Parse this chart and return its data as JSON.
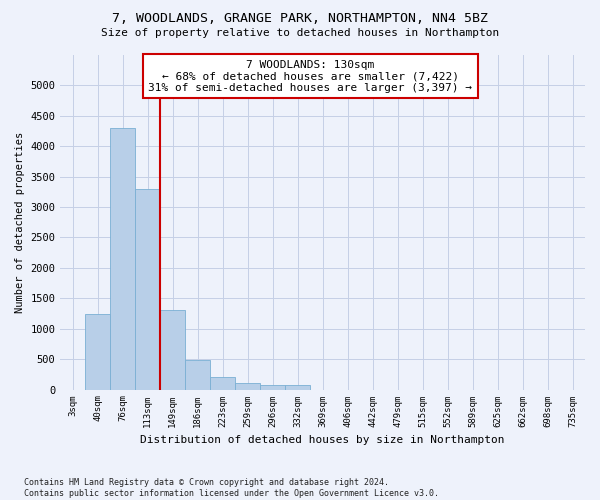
{
  "title1": "7, WOODLANDS, GRANGE PARK, NORTHAMPTON, NN4 5BZ",
  "title2": "Size of property relative to detached houses in Northampton",
  "xlabel": "Distribution of detached houses by size in Northampton",
  "ylabel": "Number of detached properties",
  "bar_labels": [
    "3sqm",
    "40sqm",
    "76sqm",
    "113sqm",
    "149sqm",
    "186sqm",
    "223sqm",
    "259sqm",
    "296sqm",
    "332sqm",
    "369sqm",
    "406sqm",
    "442sqm",
    "479sqm",
    "515sqm",
    "552sqm",
    "589sqm",
    "625sqm",
    "662sqm",
    "698sqm",
    "735sqm"
  ],
  "bar_values": [
    0,
    1250,
    4300,
    3300,
    1300,
    480,
    200,
    100,
    75,
    75,
    0,
    0,
    0,
    0,
    0,
    0,
    0,
    0,
    0,
    0,
    0
  ],
  "bar_color": "#b8cfe8",
  "bar_edge_color": "#7aafd4",
  "vline_x_index": 3.5,
  "vline_color": "#cc0000",
  "annotation_line1": "7 WOODLANDS: 130sqm",
  "annotation_line2": "← 68% of detached houses are smaller (7,422)",
  "annotation_line3": "31% of semi-detached houses are larger (3,397) →",
  "annotation_box_color": "#ffffff",
  "annotation_box_edge": "#cc0000",
  "ylim": [
    0,
    5500
  ],
  "yticks": [
    0,
    500,
    1000,
    1500,
    2000,
    2500,
    3000,
    3500,
    4000,
    4500,
    5000
  ],
  "footnote": "Contains HM Land Registry data © Crown copyright and database right 2024.\nContains public sector information licensed under the Open Government Licence v3.0.",
  "bg_color": "#eef2fb",
  "grid_color": "#c5cfe6"
}
